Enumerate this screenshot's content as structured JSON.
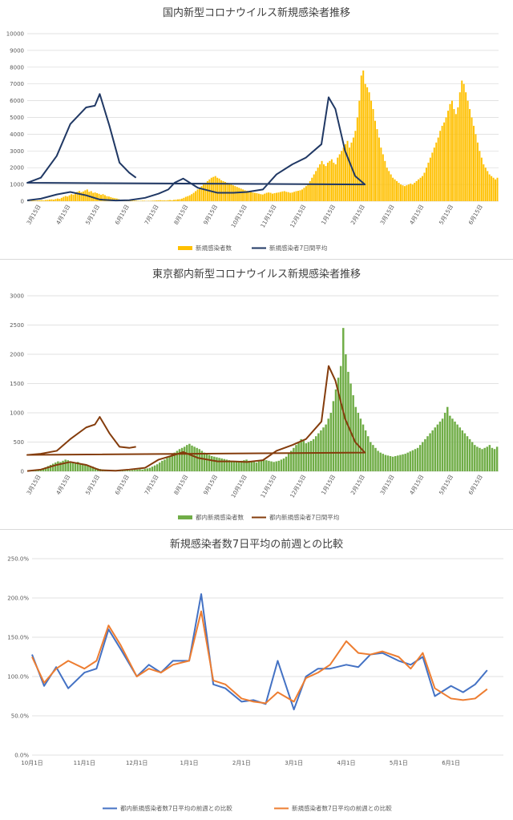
{
  "chart_data": [
    {
      "type": "bar",
      "title": "国内新型コロナウイルス新規感染者推移",
      "xlabel": "",
      "ylabel": "",
      "ylim": [
        0,
        10000
      ],
      "yticks": [
        "0",
        "1000",
        "2000",
        "3000",
        "4000",
        "5000",
        "6000",
        "7000",
        "8000",
        "9000",
        "10000"
      ],
      "x_tick_labels": [
        "3月15日",
        "4月15日",
        "5月15日",
        "6月15日",
        "7月15日",
        "8月15日",
        "9月15日",
        "10月15日",
        "11月15日",
        "12月15日",
        "1月15日",
        "2月15日",
        "3月15日",
        "4月15日",
        "5月15日",
        "6月15日"
      ],
      "grid": true,
      "legend_position": "bottom",
      "colors": {
        "bars": "#ffc000",
        "line": "#203864"
      },
      "series": [
        {
          "name": "新規感染者数",
          "type": "bar"
        },
        {
          "name": "新規感染者7日間平均",
          "type": "line",
          "x": [
            "3月1日",
            "3月15日",
            "4月1日",
            "4月15日",
            "5月1日",
            "5月15日",
            "6月1日",
            "6月15日",
            "7月1日",
            "7月15日",
            "7月25日",
            "8月1日",
            "8月10日",
            "8月25日",
            "9月15日",
            "10月1日",
            "10月15日",
            "11月1日",
            "11月15日",
            "12月1日",
            "12月15日",
            "12月31日",
            "1月8日",
            "1月15日",
            "1月25日",
            "2月5日",
            "2月15日",
            "3月1日",
            "3月15日",
            "4月1日",
            "4月15日",
            "5月1日",
            "5月10日",
            "5月15日",
            "5月25日",
            "6月5日",
            "6月15日",
            "6月22日"
          ],
          "values": [
            50,
            150,
            400,
            550,
            350,
            100,
            40,
            60,
            200,
            450,
            700,
            1100,
            1350,
            800,
            500,
            500,
            550,
            700,
            1600,
            2200,
            2600,
            3400,
            6200,
            5500,
            3000,
            1500,
            1000,
            1100,
            1400,
            2700,
            4600,
            5600,
            5700,
            6400,
            4500,
            2300,
            1700,
            1400
          ]
        }
      ],
      "bar_values": [
        20,
        15,
        35,
        40,
        30,
        45,
        55,
        60,
        45,
        70,
        80,
        95,
        110,
        90,
        130,
        160,
        140,
        200,
        260,
        310,
        280,
        350,
        420,
        390,
        500,
        560,
        610,
        540,
        580,
        650,
        700,
        560,
        600,
        500,
        520,
        480,
        440,
        380,
        420,
        360,
        300,
        280,
        240,
        200,
        180,
        160,
        120,
        90,
        70,
        80,
        65,
        50,
        45,
        40,
        35,
        30,
        25,
        20,
        30,
        25,
        15,
        20,
        25,
        30,
        40,
        45,
        55,
        60,
        45,
        50,
        40,
        60,
        70,
        55,
        80,
        90,
        110,
        120,
        150,
        200,
        260,
        300,
        350,
        420,
        500,
        600,
        700,
        800,
        900,
        1000,
        1100,
        1200,
        1300,
        1400,
        1450,
        1500,
        1400,
        1350,
        1250,
        1200,
        1150,
        1100,
        1050,
        1000,
        950,
        900,
        850,
        800,
        750,
        700,
        650,
        620,
        600,
        550,
        520,
        500,
        480,
        450,
        420,
        400,
        450,
        500,
        520,
        500,
        450,
        480,
        500,
        520,
        550,
        580,
        600,
        560,
        540,
        500,
        520,
        560,
        600,
        620,
        650,
        700,
        800,
        900,
        1000,
        1200,
        1400,
        1600,
        1800,
        2000,
        2200,
        2400,
        2200,
        2100,
        2300,
        2400,
        2500,
        2300,
        2200,
        2600,
        2800,
        3000,
        3200,
        3400,
        3600,
        3200,
        3500,
        3800,
        4200,
        5000,
        6000,
        7500,
        7800,
        7000,
        6800,
        6500,
        6000,
        5500,
        4800,
        4300,
        3800,
        3200,
        2800,
        2400,
        2000,
        1800,
        1600,
        1400,
        1300,
        1200,
        1100,
        1000,
        950,
        900,
        950,
        1000,
        1050,
        1000,
        1100,
        1200,
        1300,
        1400,
        1500,
        1700,
        2000,
        2300,
        2600,
        2900,
        3200,
        3500,
        3800,
        4200,
        4500,
        4700,
        5000,
        5400,
        5800,
        6000,
        5500,
        5200,
        5600,
        6500,
        7200,
        7000,
        6500,
        6000,
        5500,
        5000,
        4500,
        4000,
        3500,
        3000,
        2600,
        2200,
        2000,
        1800,
        1600,
        1500,
        1400,
        1300,
        1400
      ]
    },
    {
      "type": "bar",
      "title": "東京都内新型コロナウイルス新規感染者推移",
      "xlabel": "",
      "ylabel": "",
      "ylim": [
        0,
        3000
      ],
      "yticks": [
        "0",
        "500",
        "1000",
        "1500",
        "2000",
        "2500",
        "3000"
      ],
      "x_tick_labels": [
        "3月15日",
        "4月15日",
        "5月15日",
        "6月15日",
        "7月15日",
        "8月15日",
        "9月15日",
        "10月15日",
        "11月15日",
        "12月15日",
        "1月15日",
        "2月15日",
        "3月15日",
        "4月15日",
        "5月15日",
        "6月15日"
      ],
      "grid": true,
      "legend_position": "bottom",
      "colors": {
        "bars": "#70ad47",
        "line": "#843c0c"
      },
      "series": [
        {
          "name": "都内新規感染者数",
          "type": "bar"
        },
        {
          "name": "都内新規感染者7日間平均",
          "type": "line",
          "x": [
            "3月1日",
            "3月15日",
            "4月1日",
            "4月15日",
            "5月1日",
            "5月15日",
            "6月1日",
            "6月15日",
            "7月1日",
            "7月15日",
            "8月1日",
            "8月10日",
            "8月25日",
            "9月15日",
            "10月1日",
            "10月15日",
            "11月1日",
            "11月15日",
            "12月1日",
            "12月15日",
            "12月31日",
            "1月8日",
            "1月15日",
            "1月25日",
            "2月5日",
            "2月15日",
            "3月1日",
            "3月15日",
            "4月1日",
            "4月15日",
            "5月1日",
            "5月10日",
            "5月15日",
            "5月25日",
            "6月5日",
            "6月15日",
            "6月22日"
          ],
          "values": [
            5,
            30,
            110,
            160,
            110,
            20,
            10,
            30,
            60,
            200,
            280,
            330,
            230,
            170,
            170,
            160,
            190,
            350,
            450,
            550,
            850,
            1800,
            1550,
            900,
            500,
            320,
            280,
            300,
            350,
            550,
            750,
            800,
            930,
            650,
            420,
            400,
            420
          ]
        }
      ],
      "bar_values": [
        5,
        8,
        12,
        20,
        25,
        35,
        50,
        70,
        90,
        110,
        130,
        150,
        170,
        160,
        180,
        200,
        190,
        170,
        150,
        140,
        160,
        130,
        120,
        110,
        100,
        90,
        80,
        60,
        50,
        40,
        30,
        25,
        20,
        15,
        10,
        8,
        10,
        12,
        15,
        10,
        12,
        15,
        20,
        25,
        30,
        35,
        30,
        40,
        50,
        60,
        80,
        100,
        120,
        150,
        180,
        200,
        230,
        260,
        290,
        320,
        350,
        380,
        400,
        420,
        450,
        470,
        440,
        420,
        400,
        380,
        350,
        320,
        300,
        280,
        260,
        250,
        240,
        230,
        220,
        210,
        200,
        190,
        180,
        170,
        160,
        170,
        180,
        190,
        200,
        180,
        170,
        160,
        150,
        170,
        180,
        200,
        190,
        180,
        170,
        160,
        170,
        180,
        200,
        220,
        250,
        300,
        350,
        400,
        450,
        500,
        550,
        520,
        480,
        500,
        520,
        550,
        600,
        650,
        700,
        750,
        800,
        900,
        1000,
        1200,
        1400,
        1600,
        1800,
        2450,
        2000,
        1700,
        1500,
        1300,
        1100,
        1000,
        900,
        800,
        700,
        600,
        500,
        450,
        400,
        350,
        320,
        300,
        280,
        270,
        260,
        250,
        260,
        270,
        280,
        290,
        300,
        320,
        340,
        360,
        380,
        400,
        450,
        500,
        550,
        600,
        650,
        700,
        750,
        800,
        850,
        900,
        1000,
        1100,
        950,
        900,
        850,
        800,
        750,
        700,
        650,
        600,
        550,
        500,
        450,
        420,
        400,
        380,
        400,
        420,
        450,
        400,
        380,
        420
      ]
    },
    {
      "type": "line",
      "title": "新規感染者数7日平均の前週との比較",
      "xlabel": "",
      "ylabel": "",
      "ylim": [
        0,
        2.5
      ],
      "yticks": [
        "0.0%",
        "50.0%",
        "100.0%",
        "150.0%",
        "200.0%",
        "250.0%"
      ],
      "x": [
        "10月1日",
        "10月8日",
        "10月15日",
        "10月22日",
        "11月1日",
        "11月8日",
        "11月15日",
        "11月22日",
        "12月1日",
        "12月8日",
        "12月15日",
        "12月22日",
        "1月1日",
        "1月8日",
        "1月15日",
        "1月22日",
        "2月1日",
        "2月8日",
        "2月15日",
        "2月22日",
        "3月1日",
        "3月8日",
        "3月15日",
        "3月22日",
        "4月1日",
        "4月8日",
        "4月15日",
        "4月22日",
        "5月1日",
        "5月8日",
        "5月15日",
        "5月22日",
        "6月1日",
        "6月8日",
        "6月15日",
        "6月22日"
      ],
      "x_tick_labels": [
        "10月1日",
        "11月1日",
        "12月1日",
        "1月1日",
        "2月1日",
        "3月1日",
        "4月1日",
        "5月1日",
        "6月1日"
      ],
      "grid": true,
      "legend_position": "bottom",
      "colors": {
        "tokyo": "#4472c4",
        "national": "#ed7d31"
      },
      "series": [
        {
          "name": "都内新規感染者数7日平均の前週との比較",
          "values": [
            1.28,
            0.88,
            1.12,
            0.85,
            1.05,
            1.1,
            1.6,
            1.35,
            1.0,
            1.15,
            1.05,
            1.2,
            1.2,
            2.05,
            0.9,
            0.85,
            0.68,
            0.7,
            0.65,
            1.2,
            0.58,
            1.0,
            1.1,
            1.1,
            1.15,
            1.12,
            1.28,
            1.3,
            1.2,
            1.15,
            1.25,
            0.75,
            0.88,
            0.8,
            0.9,
            1.08
          ]
        },
        {
          "name": "新規感染者数7日平均の前週との比較",
          "values": [
            1.25,
            0.92,
            1.1,
            1.2,
            1.1,
            1.2,
            1.65,
            1.4,
            1.0,
            1.1,
            1.05,
            1.15,
            1.2,
            1.83,
            0.95,
            0.9,
            0.72,
            0.68,
            0.66,
            0.8,
            0.68,
            0.98,
            1.05,
            1.15,
            1.45,
            1.3,
            1.28,
            1.32,
            1.25,
            1.1,
            1.3,
            0.85,
            0.72,
            0.7,
            0.72,
            0.84
          ]
        }
      ]
    }
  ]
}
